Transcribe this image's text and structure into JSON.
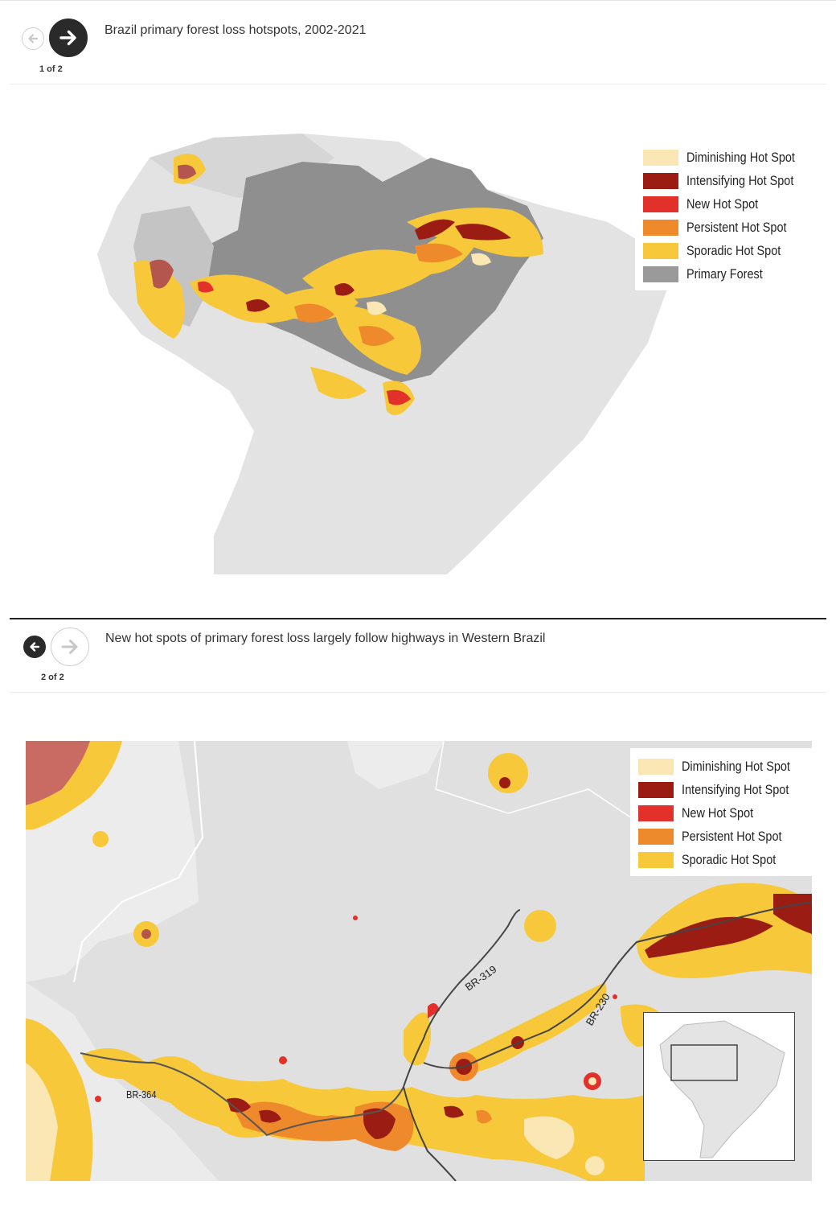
{
  "slides": [
    {
      "title": "Brazil primary forest loss hotspots, 2002-2021",
      "counter": "1 of 2",
      "legend": [
        {
          "label": "Diminishing Hot Spot",
          "color": "#fbe7b3"
        },
        {
          "label": "Intensifying Hot Spot",
          "color": "#9b1c12"
        },
        {
          "label": "New Hot Spot",
          "color": "#e2302a"
        },
        {
          "label": "Persistent Hot Spot",
          "color": "#ee8a2c"
        },
        {
          "label": "Sporadic Hot Spot",
          "color": "#f6c83a"
        },
        {
          "label": "Primary Forest",
          "color": "#9a9a9a"
        }
      ]
    },
    {
      "title": "New hot spots of primary forest loss largely follow highways in Western Brazil",
      "counter": "2 of 2",
      "legend": [
        {
          "label": "Diminishing Hot Spot",
          "color": "#fbe7b3"
        },
        {
          "label": "Intensifying Hot Spot",
          "color": "#9b1c12"
        },
        {
          "label": "New Hot Spot",
          "color": "#e2302a"
        },
        {
          "label": "Persistent Hot Spot",
          "color": "#ee8a2c"
        },
        {
          "label": "Sporadic Hot Spot",
          "color": "#f6c83a"
        }
      ],
      "highways": [
        "BR-364",
        "BR-319",
        "BR-230"
      ]
    }
  ],
  "icons": {
    "prev": "arrow-left-icon",
    "next": "arrow-right-icon"
  }
}
